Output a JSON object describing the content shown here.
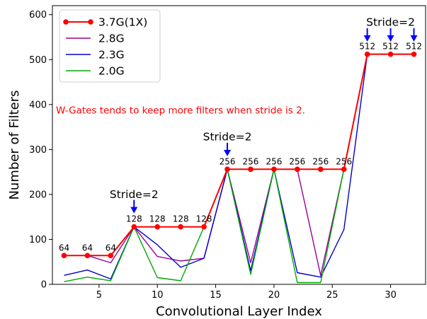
{
  "chart_data": {
    "type": "line",
    "title": "",
    "xlabel": "Convolutional Layer Index",
    "ylabel": "Number of Filters",
    "xlim": [
      1,
      33
    ],
    "ylim": [
      0,
      620
    ],
    "xticks": [
      5,
      10,
      15,
      20,
      25,
      30
    ],
    "yticks": [
      0,
      100,
      200,
      300,
      400,
      500,
      600
    ],
    "grid": false,
    "legend_position": "top-left",
    "x": [
      2,
      4,
      6,
      8,
      10,
      12,
      14,
      16,
      18,
      20,
      22,
      24,
      26,
      28,
      30,
      32
    ],
    "series": [
      {
        "name": "3.7G(1X)",
        "color": "#ff0000",
        "marker": "circle",
        "values": [
          64,
          64,
          64,
          128,
          128,
          128,
          128,
          256,
          256,
          256,
          256,
          256,
          256,
          512,
          512,
          512
        ]
      },
      {
        "name": "2.8G",
        "color": "#990099",
        "marker": "none",
        "values": [
          64,
          64,
          48,
          128,
          62,
          52,
          58,
          256,
          48,
          256,
          256,
          20,
          256,
          512,
          512,
          512
        ]
      },
      {
        "name": "2.3G",
        "color": "#0000cc",
        "marker": "none",
        "values": [
          20,
          32,
          12,
          128,
          88,
          38,
          58,
          256,
          30,
          256,
          26,
          16,
          122,
          512,
          512,
          512
        ]
      },
      {
        "name": "2.0G",
        "color": "#00aa00",
        "marker": "none",
        "values": [
          6,
          16,
          8,
          128,
          15,
          8,
          128,
          256,
          22,
          256,
          4,
          4,
          256,
          512,
          512,
          512
        ]
      }
    ],
    "data_labels": [
      {
        "x": 2,
        "y": 64,
        "text": "64"
      },
      {
        "x": 4,
        "y": 64,
        "text": "64"
      },
      {
        "x": 6,
        "y": 64,
        "text": "64"
      },
      {
        "x": 8,
        "y": 128,
        "text": "128"
      },
      {
        "x": 10,
        "y": 128,
        "text": "128"
      },
      {
        "x": 12,
        "y": 128,
        "text": "128"
      },
      {
        "x": 14,
        "y": 128,
        "text": "128"
      },
      {
        "x": 16,
        "y": 256,
        "text": "256"
      },
      {
        "x": 18,
        "y": 256,
        "text": "256"
      },
      {
        "x": 20,
        "y": 256,
        "text": "256"
      },
      {
        "x": 22,
        "y": 256,
        "text": "256"
      },
      {
        "x": 24,
        "y": 256,
        "text": "256"
      },
      {
        "x": 26,
        "y": 256,
        "text": "256"
      },
      {
        "x": 28,
        "y": 512,
        "text": "512"
      },
      {
        "x": 30,
        "y": 512,
        "text": "512"
      },
      {
        "x": 32,
        "y": 512,
        "text": "512"
      }
    ],
    "annotations": [
      {
        "text": "Stride=2",
        "arrows_at_x": [
          8
        ],
        "arrow_tip_y": 158,
        "label_y": 192,
        "color": "#0000ff"
      },
      {
        "text": "Stride=2",
        "arrows_at_x": [
          16
        ],
        "arrow_tip_y": 285,
        "label_y": 320,
        "color": "#0000ff"
      },
      {
        "text": "Stride=2",
        "arrows_at_x": [
          28,
          30,
          32
        ],
        "arrow_tip_y": 540,
        "label_y": 575,
        "color": "#0000ff"
      }
    ],
    "note": {
      "text": "W-Gates tends to keep more filters when stride is 2.",
      "color": "#ff0000",
      "x": 1.3,
      "y": 380
    }
  }
}
